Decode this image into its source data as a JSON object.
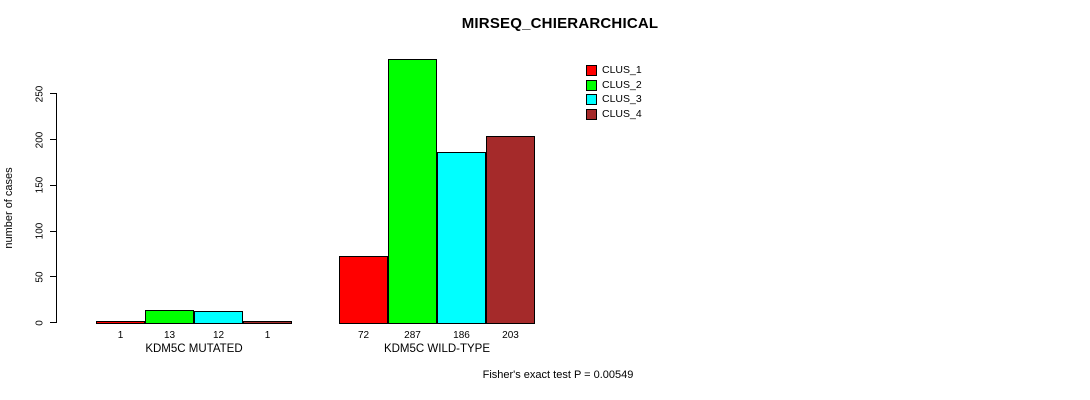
{
  "chart_data": {
    "type": "bar",
    "title": "MIRSEQ_CHIERARCHICAL",
    "ylabel": "number of cases",
    "xlabel": "",
    "yticks": [
      0,
      50,
      100,
      150,
      200,
      250
    ],
    "ylim": [
      0,
      290
    ],
    "grid": false,
    "legend_position": "top-right",
    "categories": [
      "KDM5C MUTATED",
      "KDM5C WILD-TYPE"
    ],
    "series": [
      {
        "name": "CLUS_1",
        "color": "#ff0000",
        "values": [
          1,
          72
        ]
      },
      {
        "name": "CLUS_2",
        "color": "#00ff00",
        "values": [
          13,
          287
        ]
      },
      {
        "name": "CLUS_3",
        "color": "#00ffff",
        "values": [
          12,
          186
        ]
      },
      {
        "name": "CLUS_4",
        "color": "#a52a2a",
        "values": [
          1,
          203
        ]
      }
    ],
    "bar_value_labels": true,
    "footnote": "Fisher's exact test P = 0.00549"
  }
}
